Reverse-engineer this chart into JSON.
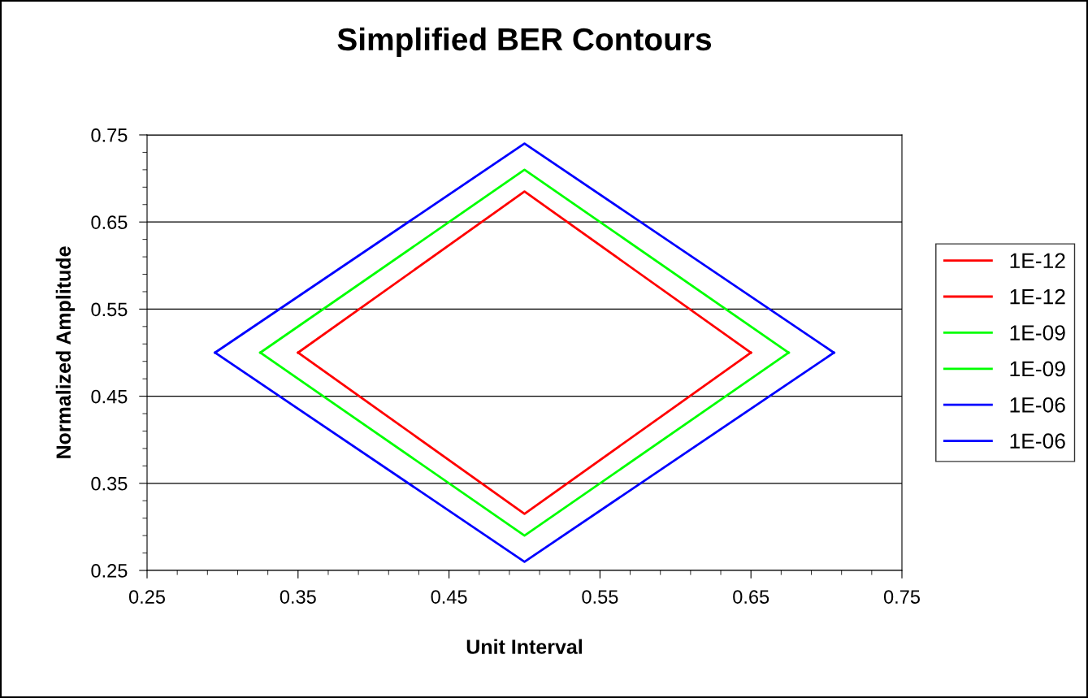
{
  "chart_data": {
    "type": "line",
    "title": "Simplified BER Contours",
    "xlabel": "Unit Interval",
    "ylabel": "Normalized Amplitude",
    "series": [
      {
        "name": "1E-12",
        "color": "#ff0000",
        "x": [
          0.35,
          0.5,
          0.65
        ],
        "values": [
          0.5,
          0.685,
          0.5
        ]
      },
      {
        "name": "1E-12",
        "color": "#ff0000",
        "x": [
          0.35,
          0.5,
          0.65
        ],
        "values": [
          0.5,
          0.315,
          0.5
        ]
      },
      {
        "name": "1E-09",
        "color": "#00ff00",
        "x": [
          0.325,
          0.5,
          0.675
        ],
        "values": [
          0.5,
          0.71,
          0.5
        ]
      },
      {
        "name": "1E-09",
        "color": "#00ff00",
        "x": [
          0.325,
          0.5,
          0.675
        ],
        "values": [
          0.5,
          0.29,
          0.5
        ]
      },
      {
        "name": "1E-06",
        "color": "#0000ff",
        "x": [
          0.295,
          0.5,
          0.705
        ],
        "values": [
          0.5,
          0.74,
          0.5
        ]
      },
      {
        "name": "1E-06",
        "color": "#0000ff",
        "x": [
          0.295,
          0.5,
          0.705
        ],
        "values": [
          0.5,
          0.26,
          0.5
        ]
      }
    ],
    "xlim": [
      0.25,
      0.75
    ],
    "ylim": [
      0.25,
      0.75
    ],
    "xticks": [
      0.25,
      {
        "value": 0.27,
        "label": null
      },
      {
        "value": 0.29,
        "label": null
      },
      {
        "value": 0.31,
        "label": null
      },
      {
        "value": 0.33,
        "label": null
      },
      0.35,
      {
        "value": 0.37,
        "label": null
      },
      {
        "value": 0.39,
        "label": null
      },
      {
        "value": 0.41,
        "label": null
      },
      {
        "value": 0.43,
        "label": null
      },
      0.45,
      {
        "value": 0.47,
        "label": null
      },
      {
        "value": 0.49,
        "label": null
      },
      {
        "value": 0.51,
        "label": null
      },
      {
        "value": 0.53,
        "label": null
      },
      0.55,
      {
        "value": 0.57,
        "label": null
      },
      {
        "value": 0.59,
        "label": null
      },
      {
        "value": 0.61,
        "label": null
      },
      {
        "value": 0.63,
        "label": null
      },
      0.65,
      {
        "value": 0.67,
        "label": null
      },
      {
        "value": 0.69,
        "label": null
      },
      {
        "value": 0.71,
        "label": null
      },
      {
        "value": 0.73,
        "label": null
      },
      0.75
    ],
    "yticks": [
      0.25,
      {
        "value": 0.27,
        "label": null
      },
      {
        "value": 0.29,
        "label": null
      },
      {
        "value": 0.31,
        "label": null
      },
      {
        "value": 0.33,
        "label": null
      },
      0.35,
      {
        "value": 0.37,
        "label": null
      },
      {
        "value": 0.39,
        "label": null
      },
      {
        "value": 0.41,
        "label": null
      },
      {
        "value": 0.43,
        "label": null
      },
      0.45,
      {
        "value": 0.47,
        "label": null
      },
      {
        "value": 0.49,
        "label": null
      },
      {
        "value": 0.51,
        "label": null
      },
      {
        "value": 0.53,
        "label": null
      },
      0.55,
      {
        "value": 0.57,
        "label": null
      },
      {
        "value": 0.59,
        "label": null
      },
      {
        "value": 0.61,
        "label": null
      },
      {
        "value": 0.63,
        "label": null
      },
      0.65,
      {
        "value": 0.67,
        "label": null
      },
      {
        "value": 0.69,
        "label": null
      },
      {
        "value": 0.71,
        "label": null
      },
      {
        "value": 0.73,
        "label": null
      },
      0.75
    ],
    "grid": "y",
    "legend": "right",
    "marker": "none",
    "line_style": "solid"
  }
}
